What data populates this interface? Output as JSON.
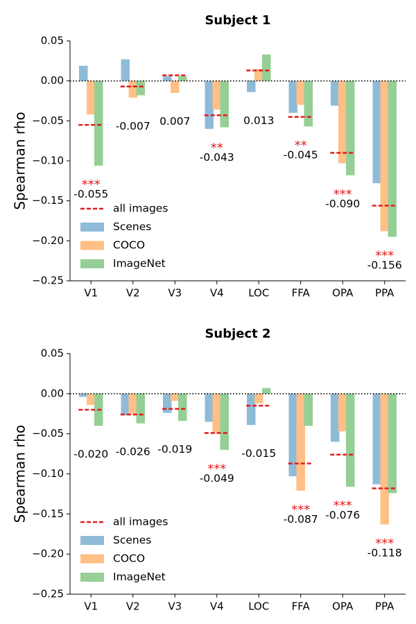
{
  "chart_data": [
    {
      "type": "bar",
      "title": "Subject 1",
      "ylabel": "Spearman rho",
      "xlabel": "",
      "ylim": [
        -0.25,
        0.05
      ],
      "yticks": [
        "−0.25",
        "−0.20",
        "−0.15",
        "−0.10",
        "−0.05",
        "0.00",
        "0.05"
      ],
      "ytick_values": [
        -0.25,
        -0.2,
        -0.15,
        -0.1,
        -0.05,
        0.0,
        0.05
      ],
      "categories": [
        "V1",
        "V2",
        "V3",
        "V4",
        "LOC",
        "FFA",
        "OPA",
        "PPA"
      ],
      "series": [
        {
          "name": "Scenes",
          "values": [
            0.019,
            0.027,
            0.006,
            -0.06,
            -0.014,
            -0.04,
            -0.031,
            -0.128
          ]
        },
        {
          "name": "COCO",
          "values": [
            -0.042,
            -0.021,
            -0.015,
            -0.036,
            0.015,
            -0.03,
            -0.103,
            -0.188
          ]
        },
        {
          "name": "ImageNet",
          "values": [
            -0.106,
            -0.018,
            0.006,
            -0.058,
            0.033,
            -0.057,
            -0.118,
            -0.195
          ]
        }
      ],
      "all_images": {
        "name": "all images",
        "values": [
          -0.055,
          -0.007,
          0.007,
          -0.043,
          0.013,
          -0.045,
          -0.09,
          -0.156
        ]
      },
      "value_labels": [
        "-0.055",
        "-0.007",
        "0.007",
        "-0.043",
        "0.013",
        "-0.045",
        "-0.090",
        "-0.156"
      ],
      "significance": [
        "***",
        "",
        "",
        "**",
        "",
        "**",
        "***",
        "***"
      ],
      "legend": {
        "position": "lower-left",
        "entries": [
          "all images",
          "Scenes",
          "COCO",
          "ImageNet"
        ]
      },
      "grid": false,
      "zero_line": "dotted"
    },
    {
      "type": "bar",
      "title": "Subject 2",
      "ylabel": "Spearman rho",
      "xlabel": "",
      "ylim": [
        -0.25,
        0.05
      ],
      "yticks": [
        "−0.25",
        "−0.20",
        "−0.15",
        "−0.10",
        "−0.05",
        "0.00",
        "0.05"
      ],
      "ytick_values": [
        -0.25,
        -0.2,
        -0.15,
        -0.1,
        -0.05,
        0.0,
        0.05
      ],
      "categories": [
        "V1",
        "V2",
        "V3",
        "V4",
        "LOC",
        "FFA",
        "OPA",
        "PPA"
      ],
      "series": [
        {
          "name": "Scenes",
          "values": [
            -0.004,
            -0.027,
            -0.024,
            -0.035,
            -0.039,
            -0.103,
            -0.06,
            -0.113
          ]
        },
        {
          "name": "COCO",
          "values": [
            -0.014,
            -0.025,
            -0.009,
            -0.049,
            -0.012,
            -0.121,
            -0.047,
            -0.163
          ]
        },
        {
          "name": "ImageNet",
          "values": [
            -0.04,
            -0.037,
            -0.034,
            -0.07,
            0.007,
            -0.04,
            -0.116,
            -0.124
          ]
        }
      ],
      "all_images": {
        "name": "all images",
        "values": [
          -0.02,
          -0.026,
          -0.019,
          -0.049,
          -0.015,
          -0.087,
          -0.076,
          -0.118
        ]
      },
      "value_labels": [
        "-0.020",
        "-0.026",
        "-0.019",
        "-0.049",
        "-0.015",
        "-0.087",
        "-0.076",
        "-0.118"
      ],
      "significance": [
        "",
        "",
        "",
        "***",
        "",
        "***",
        "***",
        "***"
      ],
      "legend": {
        "position": "lower-left",
        "entries": [
          "all images",
          "Scenes",
          "COCO",
          "ImageNet"
        ]
      },
      "grid": false,
      "zero_line": "dotted"
    }
  ],
  "colors": {
    "Scenes": "#8fbbd9",
    "COCO": "#ffbf86",
    "ImageNet": "#95cf95",
    "all_images": "#e41a1c",
    "significance": "#e41a1c",
    "axis": "#000000"
  }
}
